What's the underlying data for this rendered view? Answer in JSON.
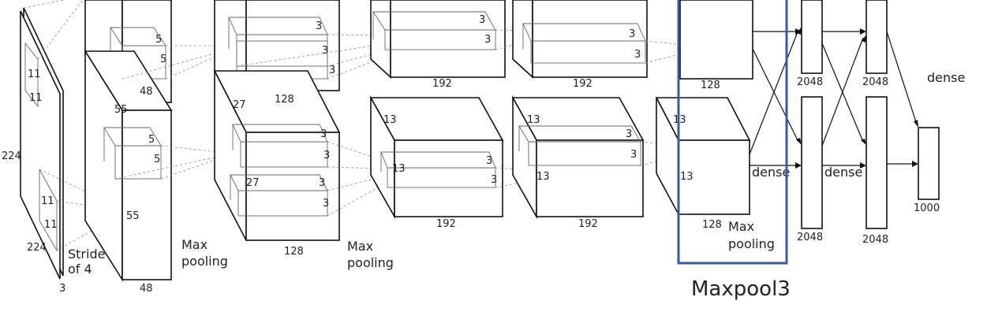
{
  "diagram": {
    "input_labels": {
      "kernel_top_a": "11",
      "kernel_top_b": "11",
      "size_side": "224",
      "kernel_bottom_a": "11",
      "kernel_bottom_b": "11",
      "size_bottom": "224",
      "channels": "3",
      "stride_line1": "Stride",
      "stride_line2": "of 4"
    },
    "conv1_labels": {
      "spatial_top": "55",
      "spatial_mid": "55",
      "depth_top": "48",
      "depth_bottom": "48",
      "kernel_top_a": "5",
      "kernel_top_b": "5",
      "kernel_bot_a": "5",
      "kernel_bot_b": "5"
    },
    "pool1_labels": {
      "line1": "Max",
      "line2": "pooling"
    },
    "conv2_labels": {
      "spatial": "27",
      "spatial_inner": "27",
      "depth_top": "128",
      "depth_bottom": "128",
      "k1": "3",
      "k2": "3",
      "k3": "3",
      "k4": "3",
      "k5": "3",
      "k6": "3",
      "k7": "3"
    },
    "pool2_labels": {
      "line1": "Max",
      "line2": "pooling"
    },
    "conv3_labels": {
      "spatial": "13",
      "spatial_inner": "13",
      "depth_top": "192",
      "depth_bottom": "192",
      "k1": "3",
      "k2": "3",
      "k3": "3",
      "k4": "3"
    },
    "conv4_labels": {
      "spatial": "13",
      "spatial_inner": "13",
      "depth_top": "192",
      "depth_bottom": "192",
      "k1": "3",
      "k2": "3",
      "k3": "3",
      "k4": "3"
    },
    "conv5_labels": {
      "spatial": "13",
      "spatial_inner": "13",
      "depth_top": "128",
      "depth_bottom": "128",
      "pool_line1": "Max",
      "pool_line2": "pooling"
    },
    "dense_labels": {
      "fc1_top": "2048",
      "fc1_bottom": "2048",
      "fc2_top": "2048",
      "fc2_bottom": "2048",
      "out": "1000",
      "dense_a": "dense",
      "dense_b": "dense",
      "dense_c": "dense"
    },
    "highlight": {
      "color": "#3d5a99",
      "caption": "Maxpool3"
    }
  }
}
